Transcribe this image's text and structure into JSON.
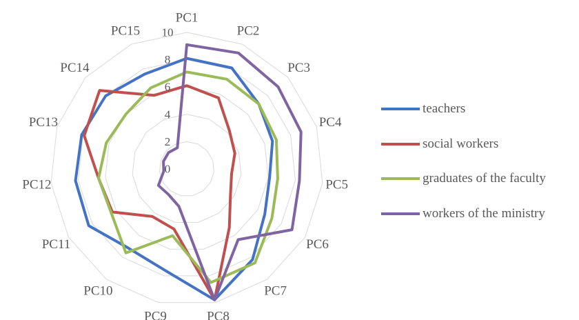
{
  "chart_data": {
    "type": "radar",
    "categories": [
      "PC1",
      "PC2",
      "PC3",
      "PC4",
      "PC5",
      "PC6",
      "PC7",
      "PC8",
      "PC9",
      "PC10",
      "PC11",
      "PC12",
      "PC13",
      "PC14",
      "PC15"
    ],
    "rlim": [
      0,
      10
    ],
    "ticks": [
      "0",
      "2",
      "4",
      "6",
      "8",
      "10"
    ],
    "grid": true,
    "legend_position": "right",
    "series": [
      {
        "name": "teachers",
        "color": "#4472c4",
        "values": [
          8.1,
          8.1,
          7.1,
          6.6,
          6.1,
          6.6,
          8.2,
          9.8,
          7.6,
          7.2,
          8.3,
          8.2,
          8.1,
          8.0,
          7.6
        ]
      },
      {
        "name": "social workers",
        "color": "#c0504d",
        "values": [
          6.1,
          5.7,
          4.2,
          3.7,
          3.3,
          3.7,
          5.3,
          9.8,
          4.5,
          4.3,
          6.3,
          6.5,
          7.9,
          8.6,
          5.9
        ]
      },
      {
        "name": "graduates of the faculty",
        "color": "#9bbb59",
        "values": [
          7.1,
          7.2,
          7.1,
          6.9,
          6.7,
          7.2,
          8.5,
          8.5,
          5.0,
          7.6,
          6.4,
          6.5,
          6.2,
          6.0,
          6.5
        ]
      },
      {
        "name": "workers of the ministry",
        "color": "#8064a2",
        "values": [
          9.1,
          9.3,
          9.0,
          8.8,
          8.3,
          8.9,
          6.4,
          9.8,
          2.8,
          2.3,
          2.4,
          1.7,
          1.8,
          1.8,
          1.7
        ]
      }
    ]
  }
}
